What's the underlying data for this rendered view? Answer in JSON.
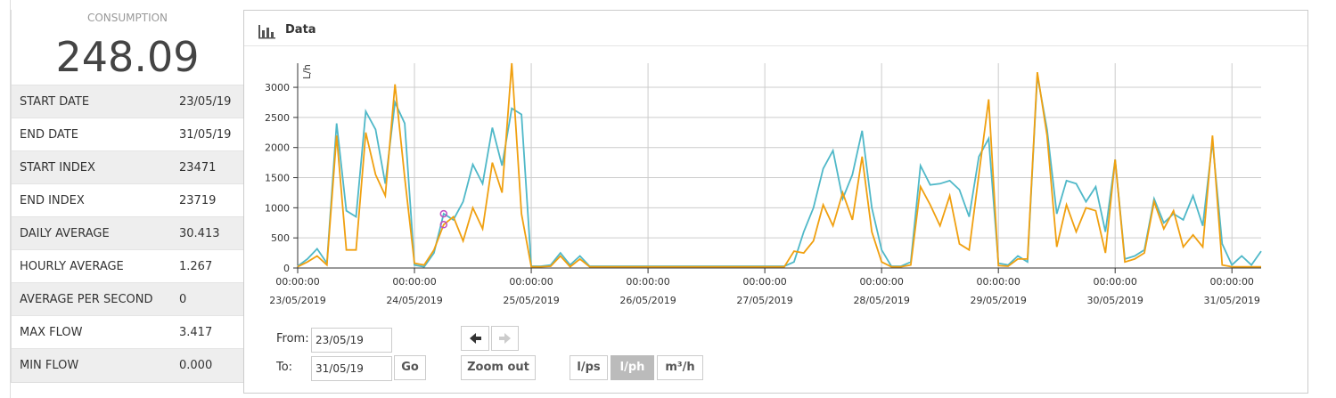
{
  "summary": {
    "label": "CONSUMPTION",
    "value": "248.09"
  },
  "stats": {
    "rows": [
      [
        "START DATE",
        "23/05/19"
      ],
      [
        "END DATE",
        "31/05/19"
      ],
      [
        "START INDEX",
        "23471"
      ],
      [
        "END INDEX",
        "23719"
      ],
      [
        "DAILY AVERAGE",
        "30.413"
      ],
      [
        "HOURLY AVERAGE",
        "1.267"
      ],
      [
        "AVERAGE PER SECOND",
        "0"
      ],
      [
        "MAX FLOW",
        "3.417"
      ],
      [
        "MIN FLOW",
        "0.000"
      ]
    ]
  },
  "panel": {
    "title": "Data"
  },
  "chart_data": {
    "type": "line",
    "y_label": "L/h",
    "grid": true,
    "ylim": [
      0,
      3400
    ],
    "yticks": [
      0,
      500,
      1000,
      1500,
      2000,
      2500,
      3000
    ],
    "xlim": [
      "2019-05-23T00:00",
      "2019-05-31T06:00"
    ],
    "xticks": [
      {
        "value": "2019-05-23T00:00",
        "label": [
          "00:00:00",
          "23/05/2019"
        ]
      },
      {
        "value": "2019-05-24T00:00",
        "label": [
          "00:00:00",
          "24/05/2019"
        ]
      },
      {
        "value": "2019-05-25T00:00",
        "label": [
          "00:00:00",
          "25/05/2019"
        ]
      },
      {
        "value": "2019-05-26T00:00",
        "label": [
          "00:00:00",
          "26/05/2019"
        ]
      },
      {
        "value": "2019-05-27T00:00",
        "label": [
          "00:00:00",
          "27/05/2019"
        ]
      },
      {
        "value": "2019-05-28T00:00",
        "label": [
          "00:00:00",
          "28/05/2019"
        ]
      },
      {
        "value": "2019-05-29T00:00",
        "label": [
          "00:00:00",
          "29/05/2019"
        ]
      },
      {
        "value": "2019-05-30T00:00",
        "label": [
          "00:00:00",
          "30/05/2019"
        ]
      },
      {
        "value": "2019-05-31T00:00",
        "label": [
          "00:00:00",
          "31/05/2019"
        ]
      }
    ],
    "x": [
      "2019-05-23T00:00",
      "2019-05-23T02:00",
      "2019-05-23T04:00",
      "2019-05-23T06:00",
      "2019-05-23T08:00",
      "2019-05-23T10:00",
      "2019-05-23T12:00",
      "2019-05-23T14:00",
      "2019-05-23T16:00",
      "2019-05-23T18:00",
      "2019-05-23T20:00",
      "2019-05-23T22:00",
      "2019-05-24T00:00",
      "2019-05-24T02:00",
      "2019-05-24T04:00",
      "2019-05-24T06:00",
      "2019-05-24T08:00",
      "2019-05-24T10:00",
      "2019-05-24T12:00",
      "2019-05-24T14:00",
      "2019-05-24T16:00",
      "2019-05-24T18:00",
      "2019-05-24T20:00",
      "2019-05-24T22:00",
      "2019-05-25T00:00",
      "2019-05-25T02:00",
      "2019-05-25T04:00",
      "2019-05-25T06:00",
      "2019-05-25T08:00",
      "2019-05-25T10:00",
      "2019-05-25T12:00",
      "2019-05-25T14:00",
      "2019-05-25T16:00",
      "2019-05-25T18:00",
      "2019-05-25T20:00",
      "2019-05-25T22:00",
      "2019-05-26T00:00",
      "2019-05-26T02:00",
      "2019-05-26T04:00",
      "2019-05-26T06:00",
      "2019-05-26T08:00",
      "2019-05-26T10:00",
      "2019-05-26T12:00",
      "2019-05-26T14:00",
      "2019-05-26T16:00",
      "2019-05-26T18:00",
      "2019-05-26T20:00",
      "2019-05-26T22:00",
      "2019-05-27T00:00",
      "2019-05-27T02:00",
      "2019-05-27T04:00",
      "2019-05-27T06:00",
      "2019-05-27T08:00",
      "2019-05-27T10:00",
      "2019-05-27T12:00",
      "2019-05-27T14:00",
      "2019-05-27T16:00",
      "2019-05-27T18:00",
      "2019-05-27T20:00",
      "2019-05-27T22:00",
      "2019-05-28T00:00",
      "2019-05-28T02:00",
      "2019-05-28T04:00",
      "2019-05-28T06:00",
      "2019-05-28T08:00",
      "2019-05-28T10:00",
      "2019-05-28T12:00",
      "2019-05-28T14:00",
      "2019-05-28T16:00",
      "2019-05-28T18:00",
      "2019-05-28T20:00",
      "2019-05-28T22:00",
      "2019-05-29T00:00",
      "2019-05-29T02:00",
      "2019-05-29T04:00",
      "2019-05-29T06:00",
      "2019-05-29T08:00",
      "2019-05-29T10:00",
      "2019-05-29T12:00",
      "2019-05-29T14:00",
      "2019-05-29T16:00",
      "2019-05-29T18:00",
      "2019-05-29T20:00",
      "2019-05-29T22:00",
      "2019-05-30T00:00",
      "2019-05-30T02:00",
      "2019-05-30T04:00",
      "2019-05-30T06:00",
      "2019-05-30T08:00",
      "2019-05-30T10:00",
      "2019-05-30T12:00",
      "2019-05-30T14:00",
      "2019-05-30T16:00",
      "2019-05-30T18:00",
      "2019-05-30T20:00",
      "2019-05-30T22:00",
      "2019-05-31T00:00",
      "2019-05-31T02:00",
      "2019-05-31T04:00",
      "2019-05-31T06:00"
    ],
    "series": [
      {
        "color": "#4fb8c8",
        "values": [
          30,
          150,
          320,
          80,
          2400,
          950,
          850,
          2600,
          2300,
          1400,
          2750,
          2400,
          50,
          20,
          250,
          900,
          800,
          1100,
          1720,
          1400,
          2330,
          1700,
          2650,
          2550,
          30,
          30,
          50,
          250,
          50,
          200,
          30,
          30,
          30,
          30,
          30,
          30,
          30,
          30,
          30,
          30,
          30,
          30,
          30,
          30,
          30,
          30,
          30,
          30,
          30,
          30,
          30,
          100,
          600,
          1000,
          1650,
          1950,
          1150,
          1550,
          2280,
          1000,
          300,
          30,
          30,
          100,
          1700,
          1380,
          1400,
          1450,
          1300,
          850,
          1850,
          2150,
          80,
          50,
          200,
          100,
          3200,
          2300,
          900,
          1450,
          1400,
          1100,
          1350,
          600,
          1800,
          150,
          200,
          300,
          1150,
          750,
          900,
          800,
          1200,
          700,
          2100,
          400,
          50,
          200,
          50,
          280
        ]
      },
      {
        "color": "#f0a010",
        "values": [
          20,
          100,
          200,
          50,
          2200,
          300,
          300,
          2250,
          1550,
          1200,
          3050,
          1500,
          80,
          50,
          300,
          720,
          850,
          450,
          1000,
          650,
          1750,
          1250,
          3400,
          900,
          20,
          20,
          30,
          200,
          20,
          150,
          20,
          20,
          20,
          20,
          20,
          20,
          20,
          20,
          20,
          20,
          20,
          20,
          20,
          20,
          20,
          20,
          20,
          20,
          20,
          20,
          20,
          280,
          250,
          450,
          1050,
          700,
          1250,
          800,
          1850,
          600,
          100,
          20,
          20,
          50,
          1350,
          1050,
          700,
          1200,
          400,
          300,
          1550,
          2800,
          40,
          30,
          150,
          150,
          3250,
          2200,
          350,
          1050,
          600,
          1000,
          950,
          250,
          1800,
          100,
          150,
          250,
          1100,
          650,
          950,
          350,
          550,
          350,
          2200,
          50,
          20,
          20,
          20,
          20
        ]
      }
    ],
    "hover_index": 15,
    "hover_color": "#c050c0"
  },
  "controls": {
    "from_label": "From:",
    "from_value": "23/05/19",
    "to_label": "To:",
    "to_value": "31/05/19",
    "go": "Go",
    "zoom_out": "Zoom out",
    "units": [
      "l/ps",
      "l/ph",
      "m³/h"
    ],
    "active_unit": 1
  }
}
